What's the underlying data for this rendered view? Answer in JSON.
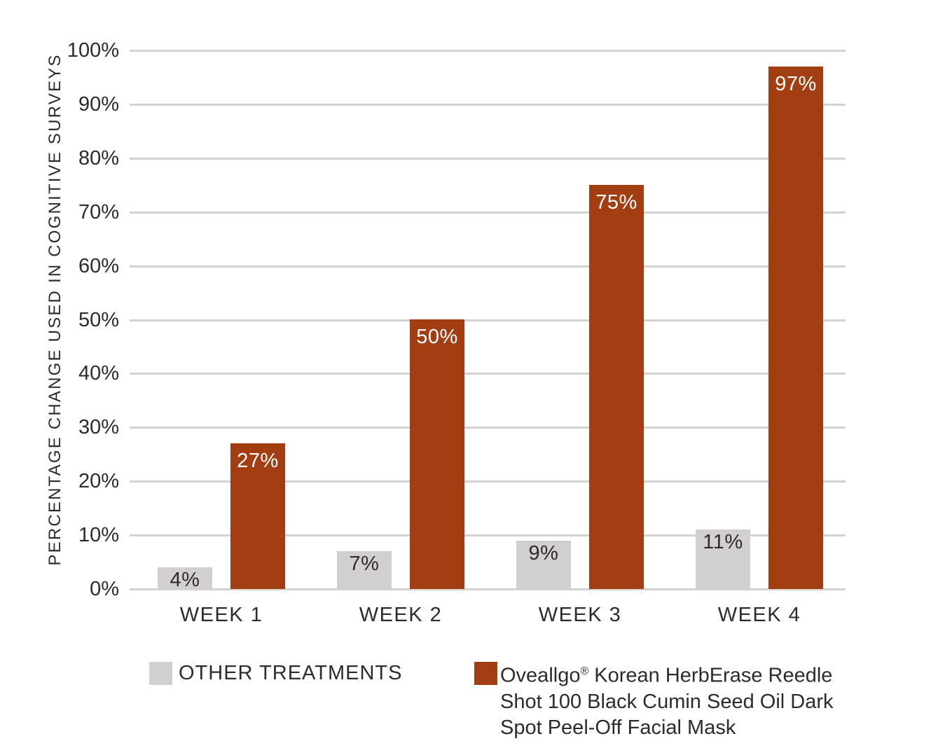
{
  "chart_data": {
    "type": "bar",
    "title": "",
    "categories": [
      "WEEK 1",
      "WEEK 2",
      "WEEK 3",
      "WEEK 4"
    ],
    "series": [
      {
        "name": "OTHER TREATMENTS",
        "values": [
          4,
          7,
          9,
          11
        ],
        "value_labels": [
          "4%",
          "7%",
          "9%",
          "11%"
        ],
        "color": "#d1d0cf",
        "label_color": "#2e2b28"
      },
      {
        "name": "Oveallgo® Korean HerbErase Reedle Shot 100 Black Cumin Seed Oil Dark Spot Peel-Off Facial Mask",
        "values": [
          27,
          50,
          75,
          97
        ],
        "value_labels": [
          "27%",
          "50%",
          "75%",
          "97%"
        ],
        "color": "#a33d12",
        "label_color": "#ffffff"
      }
    ],
    "xlabel": "",
    "ylabel": "PERCENTAGE CHANGE USED IN COGNITIVE SURVEYS",
    "ylim": [
      0,
      100
    ],
    "ytick_labels": [
      "0%",
      "10%",
      "20%",
      "30%",
      "40%",
      "50%",
      "60%",
      "70%",
      "80%",
      "90%",
      "100%"
    ],
    "grid": true,
    "legend_position": "bottom",
    "value_labels_inside_bar_top": true
  },
  "legend": {
    "items": [
      {
        "label": "OTHER TREATMENTS",
        "color": "#d1d0cf"
      },
      {
        "lines": [
          "Oveallgo® Korean HerbErase Reedle",
          "Shot 100 Black Cumin Seed Oil Dark",
          "Spot Peel-Off Facial Mask"
        ],
        "color": "#a33d12"
      }
    ]
  },
  "colors": {
    "background": "#ffffff",
    "gridline": "#d4d2d1",
    "text": "#2e2b28",
    "series_other": "#d1d0cf",
    "series_product": "#a33d12",
    "bar_label_on_red": "#ffffff"
  }
}
